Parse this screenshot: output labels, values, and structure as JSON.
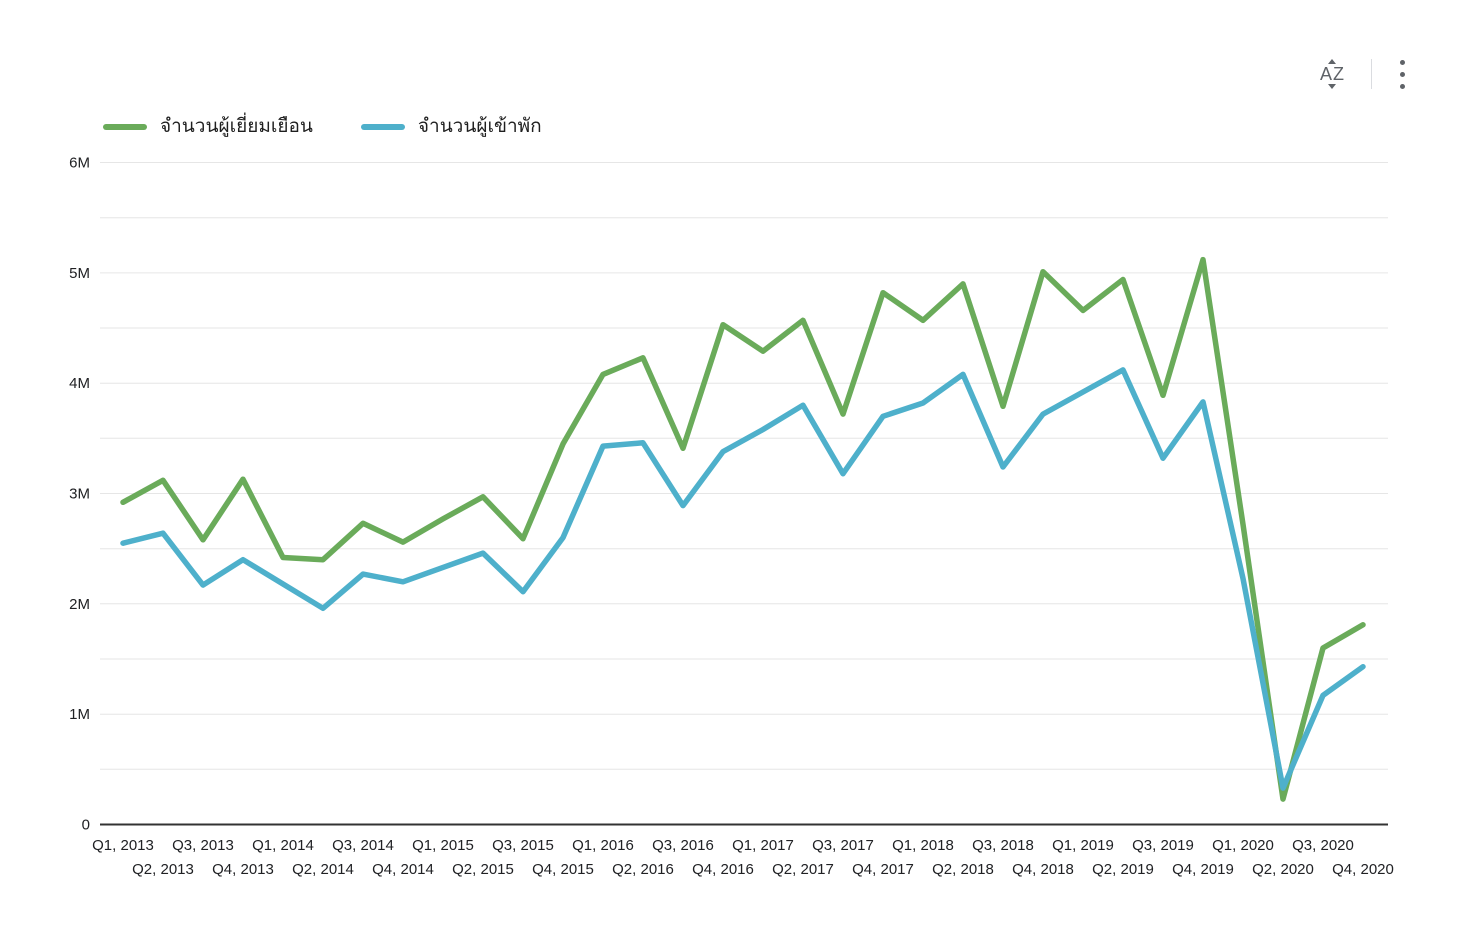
{
  "toolbar": {
    "sort_icon_label": "AZ"
  },
  "colors": {
    "series_green": "#6AAB5A",
    "series_blue": "#4EB0CB",
    "grid": "#e6e6e6",
    "axis": "#333333",
    "tick_text": "#202124",
    "icon": "#5f6368"
  },
  "chart_data": {
    "type": "line",
    "title": "",
    "xlabel": "",
    "ylabel": "",
    "grid": true,
    "legend_position": "top-left",
    "ylim_millions": [
      0,
      6
    ],
    "grid_interval_millions": 0.5,
    "y_tick_labels": [
      "6M",
      "5M",
      "4M",
      "3M",
      "2M",
      "1M",
      "0"
    ],
    "y_tick_values": [
      6,
      5,
      4,
      3,
      2,
      1,
      0
    ],
    "x_categories": [
      "Q1, 2013",
      "Q2, 2013",
      "Q3, 2013",
      "Q4, 2013",
      "Q1, 2014",
      "Q2, 2014",
      "Q3, 2014",
      "Q4, 2014",
      "Q1, 2015",
      "Q2, 2015",
      "Q3, 2015",
      "Q4, 2015",
      "Q1, 2016",
      "Q2, 2016",
      "Q3, 2016",
      "Q4, 2016",
      "Q1, 2017",
      "Q2, 2017",
      "Q3, 2017",
      "Q4, 2017",
      "Q1, 2018",
      "Q2, 2018",
      "Q3, 2018",
      "Q4, 2018",
      "Q1, 2019",
      "Q2, 2019",
      "Q3, 2019",
      "Q4, 2019",
      "Q1, 2020",
      "Q2, 2020",
      "Q3, 2020",
      "Q4, 2020"
    ],
    "series": [
      {
        "id": "visitors",
        "name": "จำนวนผู้เยี่ยมเยือน",
        "color": "#6AAB5A",
        "values_millions": [
          2.92,
          3.12,
          2.58,
          3.13,
          2.42,
          2.4,
          2.73,
          2.56,
          2.77,
          2.97,
          2.59,
          3.45,
          4.08,
          4.23,
          3.41,
          4.53,
          4.29,
          4.57,
          3.72,
          4.82,
          4.57,
          4.9,
          3.79,
          5.01,
          4.66,
          4.94,
          3.89,
          5.12,
          2.72,
          0.23,
          1.6,
          1.81
        ]
      },
      {
        "id": "overnight-guests",
        "name": "จำนวนผู้เข้าพัก",
        "color": "#4EB0CB",
        "values_millions": [
          2.55,
          2.64,
          2.17,
          2.4,
          2.18,
          1.96,
          2.27,
          2.2,
          2.33,
          2.46,
          2.11,
          2.6,
          3.43,
          3.46,
          2.89,
          3.38,
          3.58,
          3.8,
          3.18,
          3.7,
          3.82,
          4.08,
          3.24,
          3.72,
          3.92,
          4.12,
          3.32,
          3.83,
          2.23,
          0.33,
          1.17,
          1.43
        ]
      }
    ]
  }
}
